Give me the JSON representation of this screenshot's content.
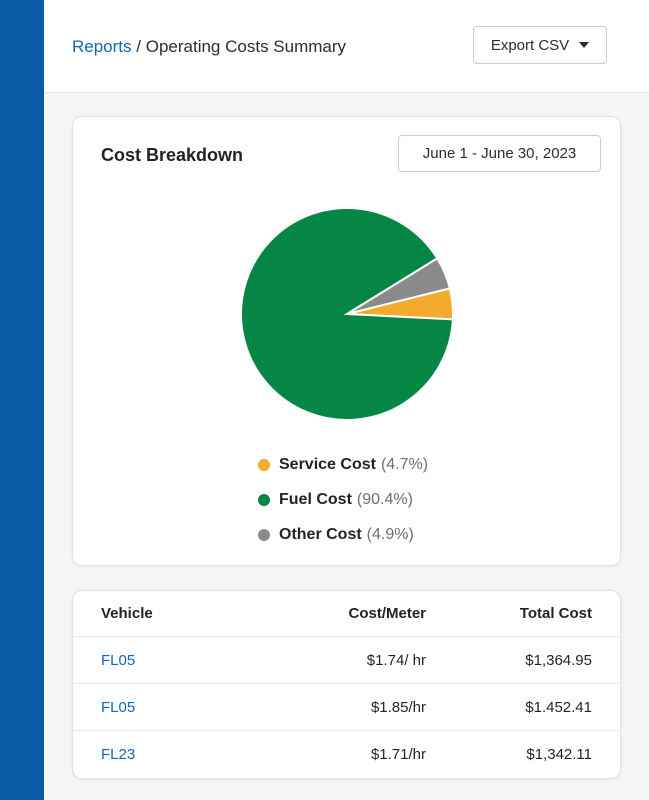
{
  "breadcrumb": {
    "parent": "Reports",
    "separator": "/",
    "current": "Operating Costs Summary"
  },
  "header": {
    "export_label": "Export CSV"
  },
  "cost_card": {
    "title": "Cost Breakdown",
    "date_range": "June 1 - June 30, 2023"
  },
  "chart_data": {
    "type": "pie",
    "slices": [
      {
        "name": "Service Cost",
        "value": 4.7,
        "pct_label": "(4.7%)",
        "color": "#f2ab2c"
      },
      {
        "name": "Fuel Cost",
        "value": 90.4,
        "pct_label": "(90.4%)",
        "color": "#058645"
      },
      {
        "name": "Other Cost",
        "value": 4.9,
        "pct_label": "(4.9%)",
        "color": "#8a8a8a"
      }
    ],
    "legend_position": "bottom"
  },
  "table": {
    "headers": {
      "vehicle": "Vehicle",
      "meter": "Cost/Meter",
      "total": "Total Cost"
    },
    "rows": [
      {
        "vehicle": "FL05",
        "meter": "$1.74/ hr",
        "total": "$1,364.95"
      },
      {
        "vehicle": "FL05",
        "meter": "$1.85/hr",
        "total": "$1.452.41"
      },
      {
        "vehicle": "FL23",
        "meter": "$1.71/hr",
        "total": "$1,342.11"
      }
    ]
  }
}
